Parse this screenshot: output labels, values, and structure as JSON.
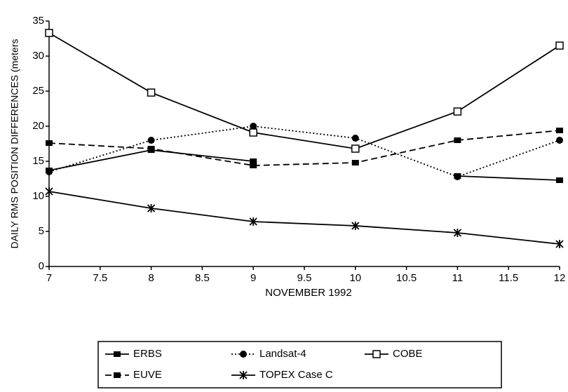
{
  "chart_data": {
    "type": "line",
    "xlabel": "NOVEMBER 1992",
    "ylabel": "DAILY RMS POSITION DIFFERENCES (meters",
    "x": [
      7,
      8,
      9,
      10,
      11,
      12
    ],
    "xlim": [
      7,
      12
    ],
    "xticks": [
      7,
      7.5,
      8,
      8.5,
      9,
      9.5,
      10,
      10.5,
      11,
      11.5,
      12
    ],
    "ylim": [
      0,
      35
    ],
    "yticks": [
      0,
      5,
      10,
      15,
      20,
      25,
      30,
      35
    ],
    "grid": false,
    "series": [
      {
        "name": "ERBS",
        "color": "#000000",
        "line_style": "solid",
        "marker": "filled-square",
        "values": [
          13.7,
          16.6,
          15,
          null,
          12.9,
          12.3
        ]
      },
      {
        "name": "Landsat-4",
        "color": "#000000",
        "line_style": "dotted",
        "marker": "filled-circle",
        "values": [
          13.5,
          18,
          20,
          18.3,
          12.8,
          18
        ]
      },
      {
        "name": "COBE",
        "color": "#000000",
        "line_style": "solid",
        "marker": "open-square",
        "values": [
          33.3,
          24.8,
          19.1,
          16.8,
          22.1,
          31.5
        ]
      },
      {
        "name": "EUVE",
        "color": "#000000",
        "line_style": "dashed",
        "marker": "filled-square",
        "values": [
          17.6,
          16.8,
          14.4,
          14.8,
          18,
          19.4
        ]
      },
      {
        "name": "TOPEX Case C",
        "color": "#000000",
        "line_style": "solid",
        "marker": "asterisk",
        "values": [
          10.7,
          8.3,
          6.4,
          5.8,
          4.8,
          3.2
        ]
      }
    ]
  }
}
